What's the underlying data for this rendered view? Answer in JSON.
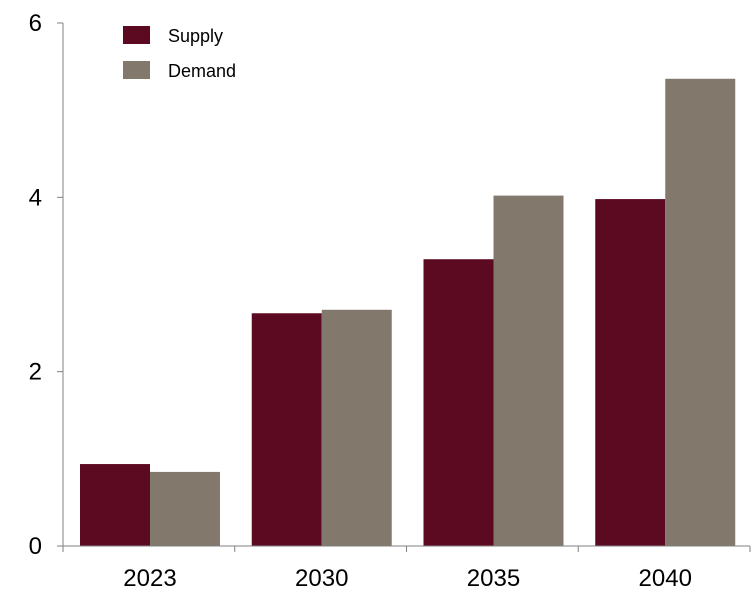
{
  "chart_data": {
    "type": "bar",
    "categories": [
      "2023",
      "2030",
      "2035",
      "2040"
    ],
    "series": [
      {
        "name": "Supply",
        "values": [
          0.94,
          2.67,
          3.29,
          3.98
        ],
        "color": "#5b0a22"
      },
      {
        "name": "Demand",
        "values": [
          0.85,
          2.71,
          4.02,
          5.36
        ],
        "color": "#82786c"
      }
    ],
    "y_ticks": [
      "0",
      "2",
      "4",
      "6"
    ],
    "ylim": [
      0,
      6
    ],
    "title": "",
    "xlabel": "",
    "ylabel": "",
    "grid": false,
    "legend_position": "top-left"
  }
}
